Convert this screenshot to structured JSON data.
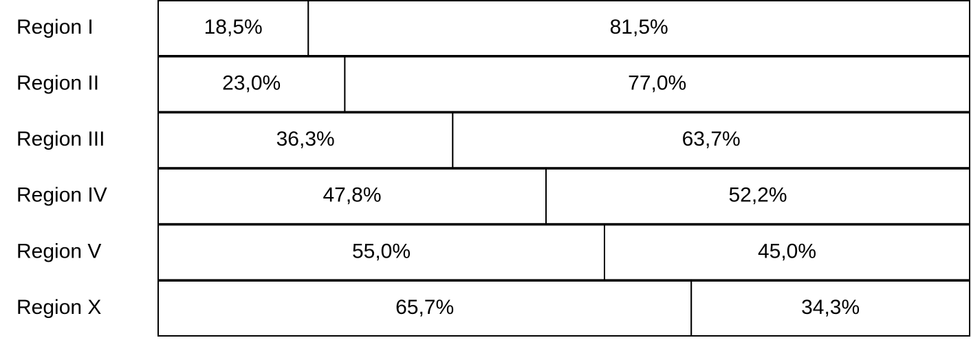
{
  "chart_data": {
    "type": "bar",
    "orientation": "horizontal",
    "stacked": true,
    "categories": [
      "Region I",
      "Region II",
      "Region III",
      "Region IV",
      "Region V",
      "Region X"
    ],
    "series": [
      {
        "color": "#ffffff",
        "values": [
          18.5,
          23.0,
          36.3,
          47.8,
          55.0,
          65.7
        ],
        "value_labels": [
          "18,5%",
          "23,0%",
          "36,3%",
          "47,8%",
          "55,0%",
          "65,7%"
        ]
      },
      {
        "color": "#ffffff",
        "values": [
          81.5,
          77.0,
          63.7,
          52.2,
          45.0,
          34.3
        ],
        "value_labels": [
          "81,5%",
          "77,0%",
          "63,7%",
          "52,2%",
          "45,0%",
          "34,3%"
        ]
      }
    ],
    "xlim": [
      0,
      100
    ]
  }
}
